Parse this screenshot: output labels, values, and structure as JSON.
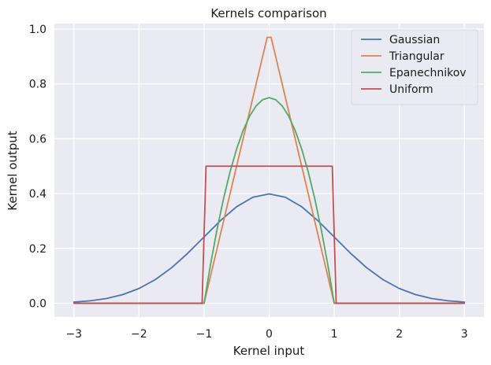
{
  "chart_data": {
    "type": "line",
    "title": "Kernels comparison",
    "xlabel": "Kernel input",
    "ylabel": "Kernel output",
    "xlim": [
      -3.3,
      3.3
    ],
    "ylim": [
      -0.05,
      1.02
    ],
    "xticks": [
      -3,
      -2,
      -1,
      0,
      1,
      2,
      3
    ],
    "xtick_labels": [
      "−3",
      "−2",
      "−1",
      "0",
      "1",
      "2",
      "3"
    ],
    "yticks": [
      0.0,
      0.2,
      0.4,
      0.6,
      0.8,
      1.0
    ],
    "ytick_labels": [
      "0.0",
      "0.2",
      "0.4",
      "0.6",
      "0.8",
      "1.0"
    ],
    "grid": true,
    "background": "#eaeaf2",
    "legend_position": "top-right",
    "series": [
      {
        "name": "Gaussian",
        "color": "#4c72b0",
        "x": [
          -3.0,
          -2.75,
          -2.5,
          -2.25,
          -2.0,
          -1.75,
          -1.5,
          -1.25,
          -1.0,
          -0.75,
          -0.5,
          -0.25,
          0.0,
          0.25,
          0.5,
          0.75,
          1.0,
          1.25,
          1.5,
          1.75,
          2.0,
          2.25,
          2.5,
          2.75,
          3.0
        ],
        "y": [
          0.0044,
          0.0091,
          0.0175,
          0.0317,
          0.054,
          0.0863,
          0.1295,
          0.1826,
          0.242,
          0.3011,
          0.3521,
          0.3867,
          0.3989,
          0.3867,
          0.3521,
          0.3011,
          0.242,
          0.1826,
          0.1295,
          0.0863,
          0.054,
          0.0317,
          0.0175,
          0.0091,
          0.0044
        ]
      },
      {
        "name": "Triangular",
        "color": "#dd8452",
        "x": [
          -3.0,
          -1.0,
          -0.03,
          0.03,
          1.0,
          3.0
        ],
        "y": [
          0.0,
          0.0,
          0.97,
          0.97,
          0.0,
          0.0
        ]
      },
      {
        "name": "Epanechnikov",
        "color": "#55a868",
        "x": [
          -3.0,
          -1.0,
          -0.9,
          -0.8,
          -0.7,
          -0.6,
          -0.5,
          -0.4,
          -0.3,
          -0.2,
          -0.1,
          0.0,
          0.1,
          0.2,
          0.3,
          0.4,
          0.5,
          0.6,
          0.7,
          0.8,
          0.9,
          1.0,
          3.0
        ],
        "y": [
          0.0,
          0.0,
          0.1425,
          0.27,
          0.3825,
          0.48,
          0.5625,
          0.63,
          0.6825,
          0.72,
          0.7425,
          0.75,
          0.7425,
          0.72,
          0.6825,
          0.63,
          0.5625,
          0.48,
          0.3825,
          0.27,
          0.1425,
          0.0,
          0.0
        ]
      },
      {
        "name": "Uniform",
        "color": "#c44e52",
        "x": [
          -3.0,
          -1.03,
          -0.97,
          0.97,
          1.03,
          3.0
        ],
        "y": [
          0.0,
          0.0,
          0.5,
          0.5,
          0.0,
          0.0
        ]
      }
    ]
  }
}
